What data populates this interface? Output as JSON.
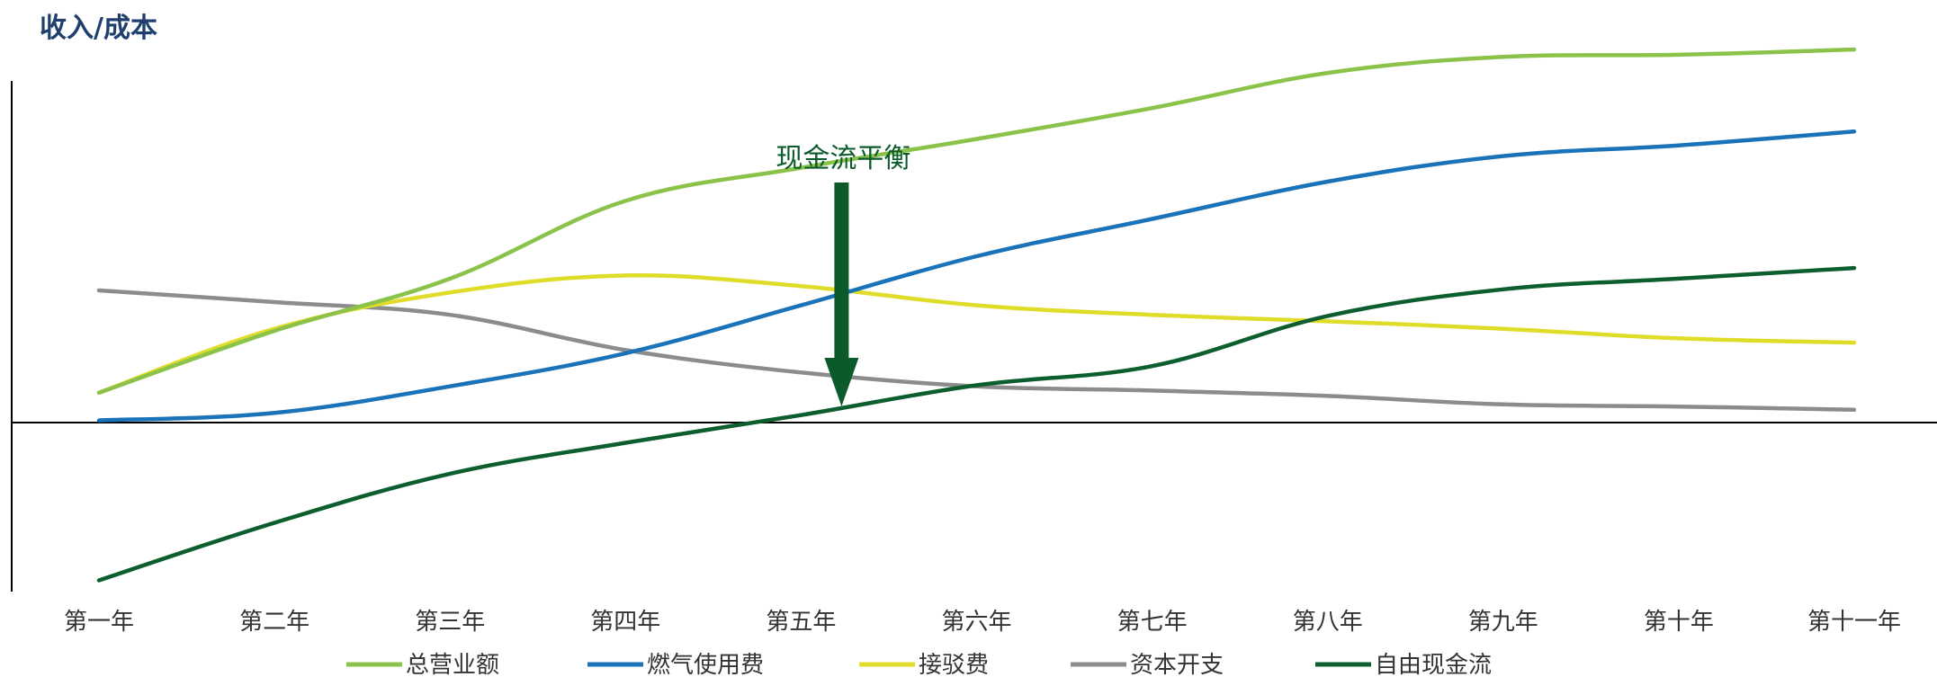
{
  "chart_data": {
    "type": "line",
    "title": "",
    "ylabel": "收入/成本",
    "xlabel": "",
    "categories": [
      "第一年",
      "第二年",
      "第三年",
      "第四年",
      "第五年",
      "第六年",
      "第七年",
      "第八年",
      "第九年",
      "第十年",
      "第十一年"
    ],
    "ylim": [
      -15,
      35
    ],
    "grid": false,
    "legend_position": "bottom",
    "series": [
      {
        "name": "总营业额",
        "color": "#8bc34a",
        "values": [
          2.8,
          8.6,
          13.5,
          20.8,
          23.9,
          26.6,
          29.5,
          32.8,
          34.3,
          34.5,
          35.0
        ]
      },
      {
        "name": "燃气使用费",
        "color": "#1a72b8",
        "values": [
          0.2,
          0.9,
          3.4,
          6.5,
          11.0,
          15.6,
          19.1,
          22.6,
          25.0,
          26.0,
          27.3
        ]
      },
      {
        "name": "接驳费",
        "color": "#e0dc2a",
        "values": [
          2.8,
          8.8,
          12.2,
          13.8,
          12.8,
          11.0,
          10.1,
          9.5,
          8.8,
          7.9,
          7.5
        ]
      },
      {
        "name": "资本开支",
        "color": "#8c8c8c",
        "values": [
          12.4,
          11.3,
          10.1,
          6.8,
          4.7,
          3.4,
          3.0,
          2.5,
          1.7,
          1.5,
          1.2
        ]
      },
      {
        "name": "自由现金流",
        "color": "#0d5e2e",
        "values": [
          -14.8,
          -9.4,
          -4.8,
          -1.9,
          0.7,
          3.5,
          5.3,
          10.0,
          12.5,
          13.5,
          14.5
        ]
      }
    ],
    "annotations": [
      {
        "text": "现金流平衡",
        "x": "第五年",
        "arrow": "down"
      }
    ]
  }
}
